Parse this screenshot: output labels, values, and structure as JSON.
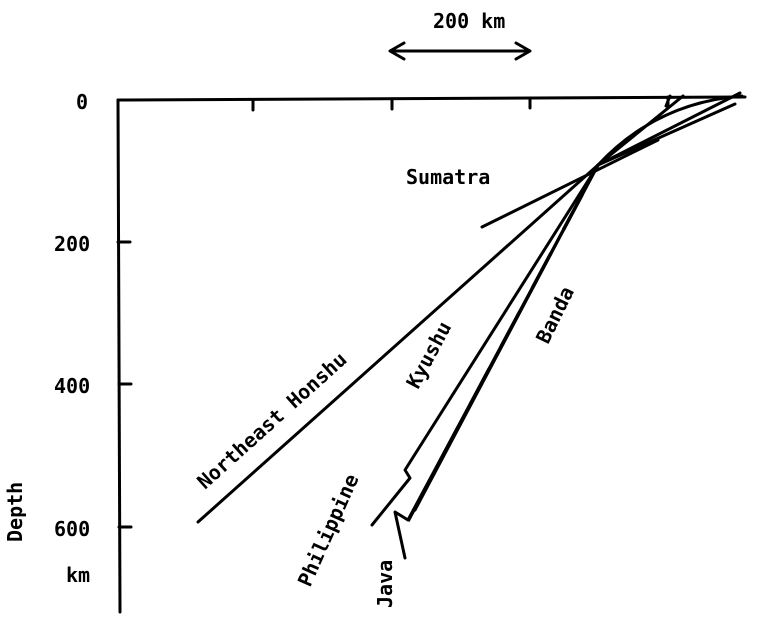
{
  "scale_bar": {
    "label": "200 km"
  },
  "axis": {
    "title_line1": "Depth",
    "title_line2": "km",
    "ticks": [
      "0",
      "200",
      "400",
      "600"
    ]
  },
  "slabs": {
    "sumatra": "Sumatra",
    "northeast_honshu": "Northeast Honshu",
    "kyushu": "Kyushu",
    "banda": "Banda",
    "philippine": "Philippine",
    "java": "Java"
  }
}
